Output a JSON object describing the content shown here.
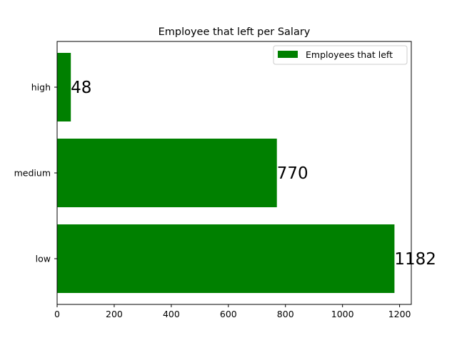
{
  "chart_data": {
    "type": "bar",
    "orientation": "horizontal",
    "title": "Employee that left per Salary",
    "categories": [
      "low",
      "medium",
      "high"
    ],
    "series": [
      {
        "name": "Employees that left",
        "values": [
          1182,
          770,
          48
        ]
      }
    ],
    "data_labels": [
      "1182",
      "770",
      "48"
    ],
    "x_ticks": [
      0,
      200,
      400,
      600,
      800,
      1000,
      1200
    ],
    "xlim": [
      0,
      1241
    ],
    "xlabel": "",
    "ylabel": "",
    "grid": false,
    "legend_position": "top-right",
    "colors": {
      "bar": "#008000",
      "axes": "#000000",
      "legend_border": "#cccccc"
    }
  }
}
